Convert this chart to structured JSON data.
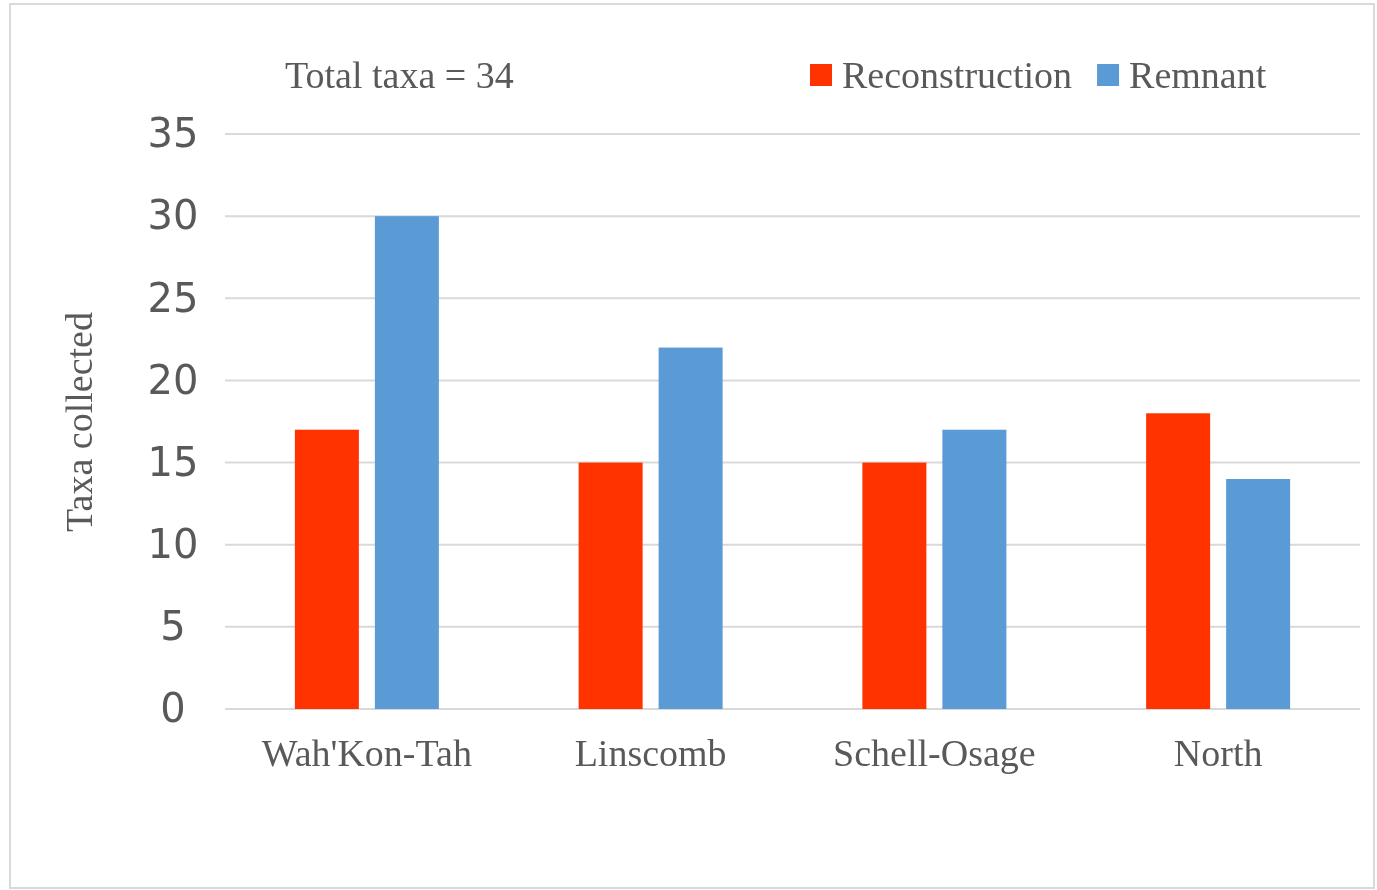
{
  "chart_data": {
    "type": "bar",
    "ylabel": "Taxa collected",
    "annotations": [
      "Total taxa = 34"
    ],
    "categories": [
      "Wah'Kon-Tah",
      "Linscomb",
      "Schell-Osage",
      "North"
    ],
    "series": [
      {
        "name": "Reconstruction",
        "color": "#ff3300",
        "values": [
          17,
          15,
          15,
          18
        ]
      },
      {
        "name": "Remnant",
        "color": "#5b9bd5",
        "values": [
          30,
          22,
          17,
          14
        ]
      }
    ],
    "ylim": [
      0,
      35
    ],
    "yticks": [
      0,
      5,
      10,
      15,
      20,
      25,
      30,
      35
    ],
    "grid": "y",
    "legend": "top right"
  }
}
